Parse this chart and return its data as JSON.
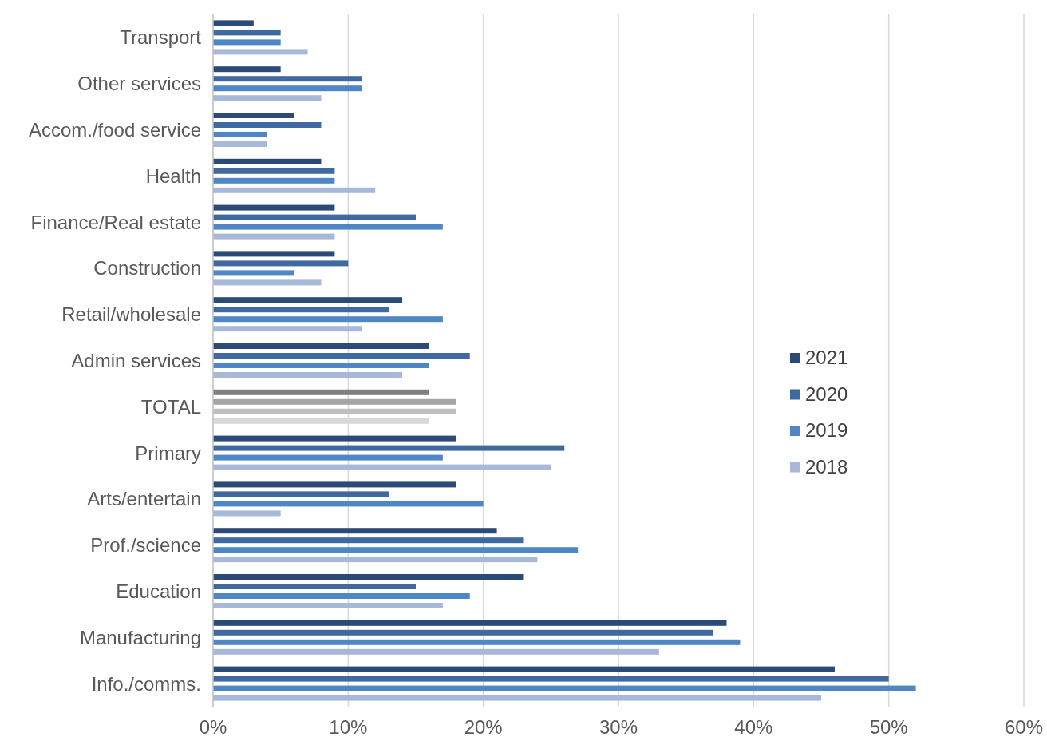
{
  "chart_data": {
    "type": "bar",
    "orientation": "horizontal",
    "categories": [
      "Transport",
      "Other services",
      "Accom./food service",
      "Health",
      "Finance/Real estate",
      "Construction",
      "Retail/wholesale",
      "Admin services",
      "TOTAL",
      "Primary",
      "Arts/entertain",
      "Prof./science",
      "Education",
      "Manufacturing",
      "Info./comms."
    ],
    "series": [
      {
        "name": "2021",
        "color": "#2c4a76",
        "colors": [
          "#2c4a76",
          "#2c4a76",
          "#2c4a76",
          "#2c4a76",
          "#2c4a76",
          "#2c4a76",
          "#2c4a76",
          "#2c4a76",
          "#7f7f7f",
          "#2c4a76",
          "#2c4a76",
          "#2c4a76",
          "#2c4a76",
          "#2c4a76",
          "#2c4a76"
        ],
        "values": [
          3,
          5,
          6,
          8,
          9,
          9,
          14,
          16,
          16,
          18,
          18,
          21,
          23,
          38,
          46
        ]
      },
      {
        "name": "2020",
        "color": "#4069a0",
        "colors": [
          "#4069a0",
          "#4069a0",
          "#4069a0",
          "#4069a0",
          "#4069a0",
          "#4069a0",
          "#4069a0",
          "#4069a0",
          "#a5a5a5",
          "#4069a0",
          "#4069a0",
          "#4069a0",
          "#4069a0",
          "#4069a0",
          "#4069a0"
        ],
        "values": [
          5,
          11,
          8,
          9,
          15,
          10,
          13,
          19,
          18,
          26,
          13,
          23,
          15,
          37,
          50
        ]
      },
      {
        "name": "2019",
        "color": "#4f86c6",
        "colors": [
          "#4f86c6",
          "#4f86c6",
          "#4f86c6",
          "#4f86c6",
          "#4f86c6",
          "#4f86c6",
          "#4f86c6",
          "#4f86c6",
          "#bfbfbf",
          "#4f86c6",
          "#4f86c6",
          "#4f86c6",
          "#4f86c6",
          "#4f86c6",
          "#4f86c6"
        ],
        "values": [
          5,
          11,
          4,
          9,
          17,
          6,
          17,
          16,
          18,
          17,
          20,
          27,
          19,
          39,
          52
        ]
      },
      {
        "name": "2018",
        "color": "#a8b8d9",
        "colors": [
          "#a8b8d9",
          "#a8b8d9",
          "#a8b8d9",
          "#a8b8d9",
          "#a8b8d9",
          "#a8b8d9",
          "#a8b8d9",
          "#a8b8d9",
          "#d9d9d9",
          "#a8b8d9",
          "#a8b8d9",
          "#a8b8d9",
          "#a8b8d9",
          "#a8b8d9",
          "#a8b8d9"
        ],
        "values": [
          7,
          8,
          4,
          12,
          9,
          8,
          11,
          14,
          16,
          25,
          5,
          24,
          17,
          33,
          45
        ]
      }
    ],
    "xlim": [
      0,
      60
    ],
    "xticks": [
      {
        "value": 0,
        "label": "0%"
      },
      {
        "value": 10,
        "label": "10%"
      },
      {
        "value": 20,
        "label": "20%"
      },
      {
        "value": 30,
        "label": "30%"
      },
      {
        "value": 40,
        "label": "40%"
      },
      {
        "value": 50,
        "label": "50%"
      },
      {
        "value": 60,
        "label": "60%"
      }
    ],
    "grid": "x",
    "legend": "right"
  }
}
